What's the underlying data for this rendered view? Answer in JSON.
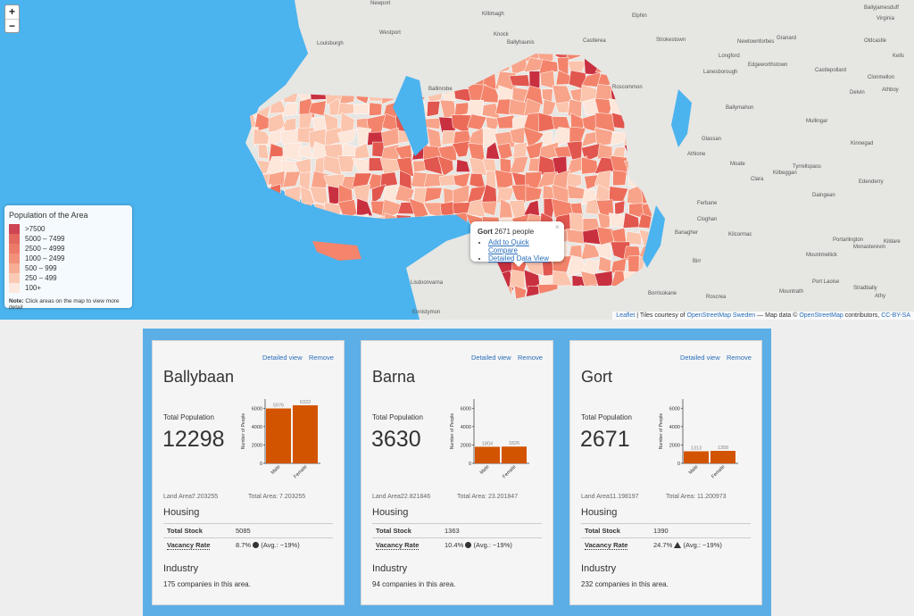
{
  "map": {
    "zoom_in": "+",
    "zoom_out": "−",
    "places": [
      "Newport",
      "Kiltimagh",
      "Knock",
      "Ballyhaunis",
      "Castlerea",
      "Elphin",
      "Strokestown",
      "Longford",
      "Granard",
      "Newtownforbes",
      "Westport",
      "Louisburgh",
      "Ballinrobe",
      "Roscommon",
      "Lanesborough",
      "Edgeworthstown",
      "Castlepollard",
      "Kells",
      "Oldcastle",
      "Virginia",
      "Athboy",
      "Delvin",
      "Ballymahon",
      "Mullingar",
      "Glassan",
      "Athlone",
      "Kinnegad",
      "Moate",
      "Tyrrellspass",
      "Kilbeggan",
      "Clara",
      "Edenderry",
      "Daingean",
      "Ferbane",
      "Cloghan",
      "Banagher",
      "Kilcormac",
      "Portarlington",
      "Monasterevin",
      "Kildare",
      "Mountmellick",
      "Birr",
      "Port Laoise",
      "Stradbally",
      "Roscrea",
      "Mountrath",
      "Athy",
      "Borrisokane",
      "Lisdoonvarna",
      "Ennistymon",
      "Clonmellon",
      "Ballyjamesduff"
    ],
    "legend": {
      "title": "Population of the Area",
      "items": [
        {
          "label": ">7500",
          "color": "#c9303f"
        },
        {
          "label": "5000 – 7499",
          "color": "#e1564e"
        },
        {
          "label": "2500 – 4999",
          "color": "#ec6b58"
        },
        {
          "label": "1000 – 2499",
          "color": "#f3846b"
        },
        {
          "label": "500 – 999",
          "color": "#f8a48a"
        },
        {
          "label": "250 – 499",
          "color": "#fbc4ad"
        },
        {
          "label": "100+",
          "color": "#fde6da"
        }
      ],
      "note_label": "Note:",
      "note_text": "Click areas on the map to view more detail"
    },
    "popup": {
      "close": "×",
      "title": "Gort",
      "text": "2671 people",
      "links": [
        "Add to Quick Compare",
        "Detailed Data View"
      ]
    },
    "attribution": {
      "leaflet": "Leaflet",
      "text1": " | Tiles courtesy of ",
      "osm_sweden": "OpenStreetMap Sweden",
      "text2": " — Map data © ",
      "osm": "OpenStreetMap",
      "text3": " contributors, ",
      "license": "CC-BY-SA"
    }
  },
  "cards": [
    {
      "name": "Ballybaan",
      "detailed_link": "Detailed view",
      "remove_link": "Remove",
      "population_label": "Total Population",
      "population": 12298,
      "chart": {
        "type": "bar",
        "ylabel": "Number of People",
        "categories": [
          "Male",
          "Female"
        ],
        "values": [
          5976,
          6322
        ],
        "color": "#d35400",
        "ylim": [
          0,
          7000
        ],
        "yticks": [
          0,
          2000,
          4000,
          6000
        ]
      },
      "land_area_label": "Land Area:",
      "land_area": 7.203255,
      "total_area_label": "Total Area:",
      "total_area": 7.203255,
      "housing_title": "Housing",
      "stock_label": "Total Stock",
      "stock": 5085,
      "vacancy_label": "Vacancy Rate",
      "vacancy": "8.7%",
      "vacancy_avg": "(Avg.: ~19%)",
      "vacancy_warning": false,
      "industry_title": "Industry",
      "industry_text": "175 companies in this area."
    },
    {
      "name": "Barna",
      "detailed_link": "Detailed view",
      "remove_link": "Remove",
      "population_label": "Total Population",
      "population": 3630,
      "chart": {
        "type": "bar",
        "ylabel": "Number of People",
        "categories": [
          "Male",
          "Female"
        ],
        "values": [
          1804,
          1826
        ],
        "color": "#d35400",
        "ylim": [
          0,
          7000
        ],
        "yticks": [
          0,
          2000,
          4000,
          6000
        ]
      },
      "land_area_label": "Land Area:",
      "land_area": 22.821846,
      "total_area_label": "Total Area:",
      "total_area": 23.201847,
      "housing_title": "Housing",
      "stock_label": "Total Stock",
      "stock": 1363,
      "vacancy_label": "Vacancy Rate",
      "vacancy": "10.4%",
      "vacancy_avg": "(Avg.: ~19%)",
      "vacancy_warning": false,
      "industry_title": "Industry",
      "industry_text": "94 companies in this area."
    },
    {
      "name": "Gort",
      "detailed_link": "Detailed view",
      "remove_link": "Remove",
      "population_label": "Total Population",
      "population": 2671,
      "chart": {
        "type": "bar",
        "ylabel": "Number of People",
        "categories": [
          "Male",
          "Female"
        ],
        "values": [
          1313,
          1358
        ],
        "color": "#d35400",
        "ylim": [
          0,
          7000
        ],
        "yticks": [
          0,
          2000,
          4000,
          6000
        ]
      },
      "land_area_label": "Land Area:",
      "land_area": 11.198197,
      "total_area_label": "Total Area:",
      "total_area": 11.200973,
      "housing_title": "Housing",
      "stock_label": "Total Stock",
      "stock": 1390,
      "vacancy_label": "Vacancy Rate",
      "vacancy": "24.7%",
      "vacancy_avg": "(Avg.: ~19%)",
      "vacancy_warning": true,
      "industry_title": "Industry",
      "industry_text": "232 companies in this area."
    }
  ]
}
